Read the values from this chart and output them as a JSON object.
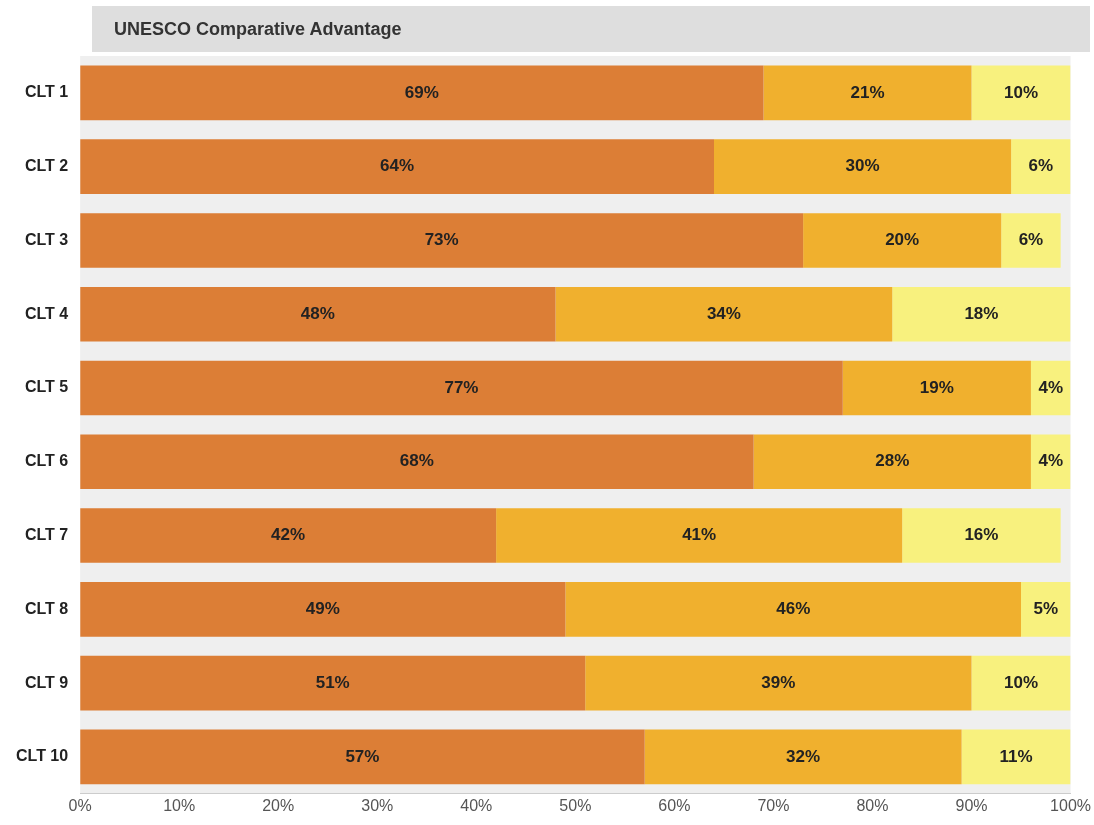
{
  "chart_data": {
    "type": "bar",
    "orientation": "horizontal",
    "stacked": true,
    "title": "UNESCO Comparative Advantage",
    "categories": [
      "CLT 1",
      "CLT 2",
      "CLT 3",
      "CLT 4",
      "CLT 5",
      "CLT 6",
      "CLT 7",
      "CLT 8",
      "CLT 9",
      "CLT 10"
    ],
    "series": [
      {
        "color": "#dc7e36",
        "values": [
          69,
          64,
          73,
          48,
          77,
          68,
          42,
          49,
          51,
          57
        ],
        "value_labels": [
          "69%",
          "64%",
          "73%",
          "48%",
          "77%",
          "68%",
          "42%",
          "49%",
          "51%",
          "57%"
        ]
      },
      {
        "color": "#f0b02e",
        "values": [
          21,
          30,
          20,
          34,
          19,
          28,
          41,
          46,
          39,
          32
        ],
        "value_labels": [
          "21%",
          "30%",
          "20%",
          "34%",
          "19%",
          "28%",
          "41%",
          "46%",
          "39%",
          "32%"
        ]
      },
      {
        "color": "#f8f17e",
        "values": [
          10,
          6,
          6,
          18,
          4,
          4,
          16,
          5,
          10,
          11
        ],
        "value_labels": [
          "10%",
          "6%",
          "6%",
          "18%",
          "4%",
          "4%",
          "16%",
          "5%",
          "10%",
          "11%"
        ]
      }
    ],
    "xlim": [
      0,
      100
    ],
    "xticks": [
      {
        "value": 0,
        "label": "0%"
      },
      {
        "value": 10,
        "label": "10%"
      },
      {
        "value": 20,
        "label": "20%"
      },
      {
        "value": 30,
        "label": "30%"
      },
      {
        "value": 40,
        "label": "40%"
      },
      {
        "value": 50,
        "label": "50%"
      },
      {
        "value": 60,
        "label": "60%"
      },
      {
        "value": 70,
        "label": "70%"
      },
      {
        "value": 80,
        "label": "80%"
      },
      {
        "value": 90,
        "label": "90%"
      },
      {
        "value": 100,
        "label": "100%"
      }
    ],
    "grid": false,
    "legend": false
  }
}
